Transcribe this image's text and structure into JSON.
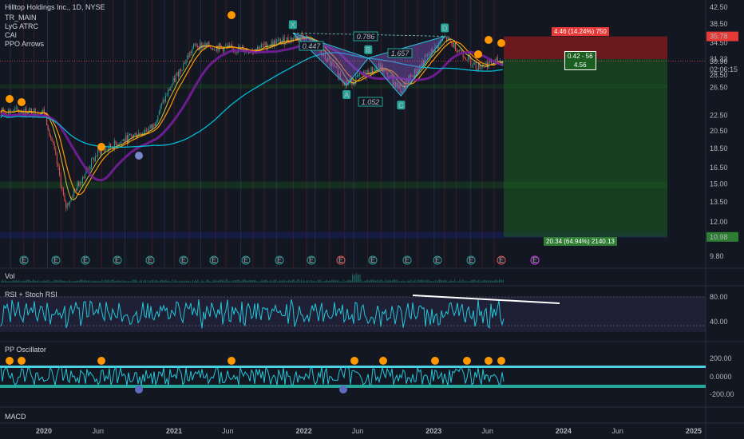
{
  "header": {
    "symbol_line": "Hilltop Holdings Inc., 1D, NYSE",
    "indicators": [
      "TR_MAIN",
      "LyG ATRC",
      "CAI",
      "PPO Arrows"
    ]
  },
  "panes": {
    "vol_title": "Vol",
    "rsi_title": "RSI + Stoch RSI",
    "pp_title": "PP Oscillator",
    "macd_title": "MACD"
  },
  "price_axis": {
    "ticks": [
      "42.50",
      "38.50",
      "34.50",
      "31.32",
      "30.90",
      "28.50",
      "26.50",
      "22.50",
      "20.50",
      "18.50",
      "16.50",
      "15.00",
      "13.50",
      "12.00",
      "9.80"
    ],
    "last_price": "30.90",
    "countdown": "02:06:15",
    "stop_price": "35.78",
    "target_price": "10.98"
  },
  "rsi_axis": {
    "ticks": [
      "80.00",
      "40.00"
    ]
  },
  "pp_axis": {
    "ticks": [
      "200.00",
      "0.0000",
      "-200.00"
    ]
  },
  "time_axis": {
    "ticks": [
      "2020",
      "Jun",
      "2021",
      "Jun",
      "2022",
      "Jun",
      "2023",
      "Jun",
      "2024",
      "Jun",
      "2025"
    ]
  },
  "position": {
    "stop_label": "4.46 (14.24%) 750",
    "target_label": "20.34 (64.94%) 2140.13",
    "center_label_1": "0.42 - 56",
    "center_label_2": "4.56"
  },
  "pattern": {
    "points": [
      "X",
      "A",
      "B",
      "C",
      "D"
    ],
    "ratios": [
      "0.447",
      "0.786",
      "1.657",
      "1.052"
    ]
  },
  "colors": {
    "background": "#131722",
    "candle_up": "#26a69a",
    "candle_down": "#ef5350",
    "pattern_fill": "#7e57c2",
    "rsi_line": "#26c6da",
    "stop_zone": "#b71c1c",
    "target_zone": "#1b5e20",
    "ema_fast": "#ff9800",
    "ema_slow": "#7b1fa2",
    "ma_long": "#00bcd4"
  },
  "chart_data": {
    "type": "candlestick",
    "title": "Hilltop Holdings Inc., 1D, NYSE",
    "x_range": [
      "2019-12",
      "2025-03"
    ],
    "ylim": [
      9.8,
      42.5
    ],
    "approx_closes": [
      {
        "date": "2020-01",
        "close": 23.0
      },
      {
        "date": "2020-03",
        "close": 13.0
      },
      {
        "date": "2020-06",
        "close": 18.0
      },
      {
        "date": "2020-11",
        "close": 21.0
      },
      {
        "date": "2021-03",
        "close": 34.0
      },
      {
        "date": "2021-08",
        "close": 33.0
      },
      {
        "date": "2022-01",
        "close": 36.0
      },
      {
        "date": "2022-05",
        "close": 27.0
      },
      {
        "date": "2022-08",
        "close": 30.0
      },
      {
        "date": "2022-10",
        "close": 26.0
      },
      {
        "date": "2023-02",
        "close": 35.5
      },
      {
        "date": "2023-05",
        "close": 30.0
      },
      {
        "date": "2023-07",
        "close": 30.9
      }
    ]
  }
}
